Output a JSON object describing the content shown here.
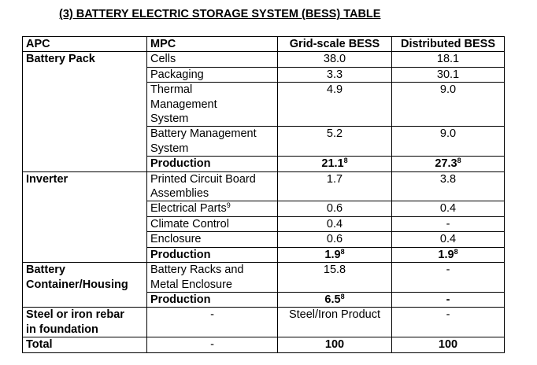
{
  "title": "(3) BATTERY ELECTRIC STORAGE SYSTEM (BESS) TABLE",
  "table": {
    "header": [
      "APC",
      "MPC",
      "Grid-scale BESS",
      "Distributed BESS"
    ],
    "groups": [
      {
        "apc": "Battery Pack",
        "rows": [
          {
            "cells": [
              "Cells",
              "38.0",
              "18.1"
            ]
          },
          {
            "cells": [
              "Packaging",
              "3.3",
              "30.1"
            ]
          },
          {
            "cells": [
              "Thermal\nManagement\nSystem",
              "4.9",
              "9.0"
            ]
          },
          {
            "cells": [
              "Battery Management\nSystem",
              "5.2",
              "9.0"
            ]
          },
          {
            "cells": [
              "Production",
              {
                "text": "21.1",
                "sup": "8"
              },
              {
                "text": "27.3",
                "sup": "8"
              }
            ],
            "bold": true
          }
        ]
      },
      {
        "apc": "Inverter",
        "rows": [
          {
            "cells": [
              "Printed Circuit Board\nAssemblies",
              "1.7",
              "3.8"
            ]
          },
          {
            "cells": [
              {
                "text": "Electrical Parts",
                "sup": "9"
              },
              "0.6",
              "0.4"
            ]
          },
          {
            "cells": [
              "Climate Control",
              "0.4",
              "-"
            ]
          },
          {
            "cells": [
              "Enclosure",
              "0.6",
              "0.4"
            ]
          },
          {
            "cells": [
              "Production",
              {
                "text": "1.9",
                "sup": "8"
              },
              {
                "text": "1.9",
                "sup": "8"
              }
            ],
            "bold": true
          }
        ]
      },
      {
        "apc": "Battery\nContainer/Housing",
        "rows": [
          {
            "cells": [
              "Battery Racks and\nMetal Enclosure",
              "15.8",
              "-"
            ]
          },
          {
            "cells": [
              "Production",
              {
                "text": "6.5",
                "sup": "8"
              },
              "-"
            ],
            "bold": true
          }
        ]
      },
      {
        "apc": "Steel or iron rebar\nin foundation",
        "rows": [
          {
            "cells": [
              "-",
              "Steel/Iron Product",
              "-"
            ]
          }
        ]
      },
      {
        "apc": "Total",
        "rows": [
          {
            "cells": [
              "-",
              "100",
              "100"
            ],
            "boldValues": true
          }
        ]
      }
    ]
  }
}
